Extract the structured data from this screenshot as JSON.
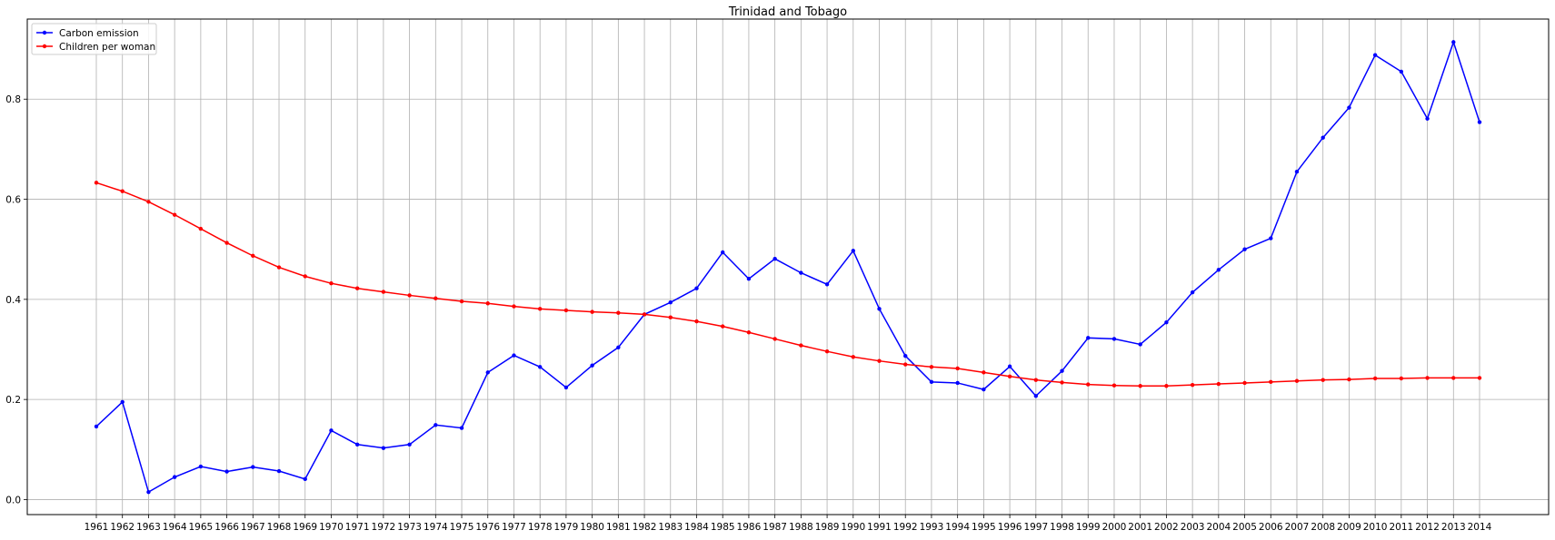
{
  "chart_data": {
    "type": "line",
    "title": "Trinidad and Tobago",
    "xlabel": "",
    "ylabel": "",
    "categories": [
      "1961",
      "1962",
      "1963",
      "1964",
      "1965",
      "1966",
      "1967",
      "1968",
      "1969",
      "1970",
      "1971",
      "1972",
      "1973",
      "1974",
      "1975",
      "1976",
      "1977",
      "1978",
      "1979",
      "1980",
      "1981",
      "1982",
      "1983",
      "1984",
      "1985",
      "1986",
      "1987",
      "1988",
      "1989",
      "1990",
      "1991",
      "1992",
      "1993",
      "1994",
      "1995",
      "1996",
      "1997",
      "1998",
      "1999",
      "2000",
      "2001",
      "2002",
      "2003",
      "2004",
      "2005",
      "2006",
      "2007",
      "2008",
      "2009",
      "2010",
      "2011",
      "2012",
      "2013",
      "2014"
    ],
    "series": [
      {
        "name": "Carbon emission",
        "color": "#0000ff",
        "values": [
          0.146,
          0.195,
          0.015,
          0.045,
          0.066,
          0.056,
          0.065,
          0.057,
          0.041,
          0.138,
          0.11,
          0.103,
          0.11,
          0.149,
          0.143,
          0.254,
          0.288,
          0.265,
          0.224,
          0.268,
          0.304,
          0.37,
          0.394,
          0.422,
          0.494,
          0.441,
          0.481,
          0.453,
          0.43,
          0.497,
          0.381,
          0.287,
          0.235,
          0.233,
          0.22,
          0.266,
          0.207,
          0.257,
          0.323,
          0.321,
          0.31,
          0.354,
          0.414,
          0.459,
          0.5,
          0.522,
          0.655,
          0.723,
          0.783,
          0.888,
          0.855,
          0.761,
          0.914,
          0.754
        ]
      },
      {
        "name": "Children per woman",
        "color": "#ff0000",
        "values": [
          0.633,
          0.616,
          0.595,
          0.569,
          0.541,
          0.513,
          0.487,
          0.464,
          0.446,
          0.432,
          0.422,
          0.415,
          0.408,
          0.402,
          0.396,
          0.392,
          0.386,
          0.381,
          0.378,
          0.375,
          0.373,
          0.37,
          0.364,
          0.356,
          0.346,
          0.334,
          0.321,
          0.308,
          0.296,
          0.285,
          0.277,
          0.27,
          0.265,
          0.262,
          0.254,
          0.246,
          0.239,
          0.234,
          0.23,
          0.228,
          0.227,
          0.227,
          0.229,
          0.231,
          0.233,
          0.235,
          0.237,
          0.239,
          0.24,
          0.242,
          0.242,
          0.243,
          0.243,
          0.243
        ]
      }
    ],
    "yticks": [
      "0.0",
      "0.2",
      "0.4",
      "0.6",
      "0.8"
    ],
    "ylim": [
      -0.03,
      0.96
    ],
    "grid": true,
    "legend_position": "top-left"
  }
}
